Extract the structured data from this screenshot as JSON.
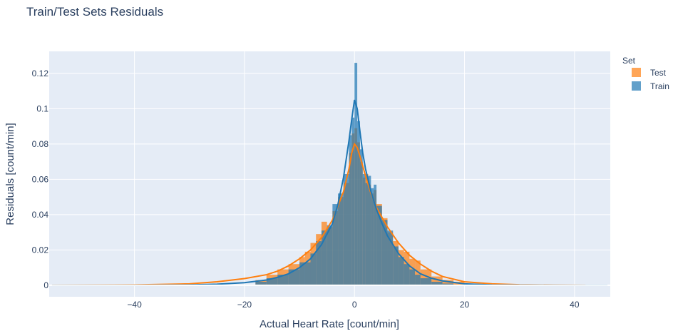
{
  "chart_data": {
    "type": "bar",
    "title": "Train/Test Sets Residuals",
    "xlabel": "Actual Heart Rate [count/min]",
    "ylabel": "Residuals [count/min]",
    "xlim": [
      -55.5,
      46.5
    ],
    "ylim": [
      -0.0065,
      0.1325
    ],
    "x_ticks": [
      -40,
      -20,
      0,
      20,
      40
    ],
    "x_tick_labels": [
      "−40",
      "−20",
      "0",
      "20",
      "40"
    ],
    "y_ticks": [
      0,
      0.02,
      0.04,
      0.06,
      0.08,
      0.1,
      0.12
    ],
    "y_tick_labels": [
      "0",
      "0.02",
      "0.04",
      "0.06",
      "0.08",
      "0.1",
      "0.12"
    ],
    "grid": true,
    "legend": {
      "title": "Set",
      "position": "right"
    },
    "series": [
      {
        "name": "Train",
        "color": "#1f77b4",
        "bins": [
          [
            -18,
            -16,
            0.002
          ],
          [
            -16,
            -14,
            0.004
          ],
          [
            -14,
            -12,
            0.006
          ],
          [
            -12,
            -10,
            0.009
          ],
          [
            -10,
            -8,
            0.013
          ],
          [
            -8,
            -7,
            0.018
          ],
          [
            -7,
            -6,
            0.025
          ],
          [
            -6,
            -5,
            0.031
          ],
          [
            -5,
            -4,
            0.034
          ],
          [
            -4,
            -3,
            0.046
          ],
          [
            -3,
            -2,
            0.052
          ],
          [
            -2,
            -1,
            0.063
          ],
          [
            -1,
            -0.5,
            0.085
          ],
          [
            -0.5,
            0,
            0.095
          ],
          [
            0,
            0.5,
            0.126
          ],
          [
            0.5,
            1,
            0.093
          ],
          [
            1,
            1.5,
            0.077
          ],
          [
            1.5,
            2,
            0.063
          ],
          [
            2,
            2.5,
            0.058
          ],
          [
            2.5,
            3,
            0.062
          ],
          [
            3,
            3.5,
            0.055
          ],
          [
            3.5,
            4,
            0.057
          ],
          [
            4,
            5,
            0.045
          ],
          [
            5,
            6,
            0.037
          ],
          [
            6,
            7,
            0.031
          ],
          [
            7,
            8,
            0.022
          ],
          [
            8,
            9,
            0.016
          ],
          [
            9,
            10,
            0.012
          ],
          [
            10,
            11,
            0.009
          ],
          [
            11,
            12,
            0.006
          ],
          [
            12,
            14,
            0.004
          ],
          [
            14,
            16,
            0.002
          ],
          [
            16,
            18,
            0.001
          ]
        ],
        "kde": {
          "x": [
            -55,
            -40,
            -30,
            -25,
            -20,
            -16,
            -14,
            -12,
            -10,
            -8,
            -6,
            -4,
            -3,
            -2,
            -1,
            -0.5,
            0,
            0.5,
            1,
            1.5,
            2,
            3,
            4,
            5,
            6,
            8,
            10,
            12,
            14,
            16,
            20,
            25,
            30,
            40,
            46
          ],
          "y": [
            0,
            0,
            0.0002,
            0.0006,
            0.0015,
            0.003,
            0.0045,
            0.0065,
            0.01,
            0.015,
            0.023,
            0.035,
            0.046,
            0.061,
            0.082,
            0.094,
            0.105,
            0.1,
            0.087,
            0.075,
            0.066,
            0.053,
            0.043,
            0.035,
            0.028,
            0.018,
            0.011,
            0.0065,
            0.004,
            0.0025,
            0.0008,
            0.0002,
            0.0001,
            0,
            0
          ]
        }
      },
      {
        "name": "Test",
        "color": "#ff7f0e",
        "bins": [
          [
            -18,
            -16,
            0.003
          ],
          [
            -16,
            -14,
            0.006
          ],
          [
            -14,
            -12,
            0.009
          ],
          [
            -12,
            -10,
            0.012
          ],
          [
            -10,
            -9,
            0.016
          ],
          [
            -9,
            -8,
            0.019
          ],
          [
            -8,
            -7,
            0.024
          ],
          [
            -7,
            -6,
            0.029
          ],
          [
            -6,
            -5,
            0.036
          ],
          [
            -5,
            -4,
            0.033
          ],
          [
            -4,
            -3,
            0.042
          ],
          [
            -3,
            -2,
            0.05
          ],
          [
            -2,
            -1,
            0.058
          ],
          [
            -1,
            -0.5,
            0.075
          ],
          [
            -0.5,
            0,
            0.086
          ],
          [
            0,
            0.5,
            0.089
          ],
          [
            0.5,
            1,
            0.081
          ],
          [
            1,
            1.5,
            0.07
          ],
          [
            1.5,
            2,
            0.061
          ],
          [
            2,
            2.5,
            0.063
          ],
          [
            2.5,
            3,
            0.057
          ],
          [
            3,
            3.5,
            0.052
          ],
          [
            3.5,
            4,
            0.054
          ],
          [
            4,
            5,
            0.046
          ],
          [
            5,
            6,
            0.038
          ],
          [
            6,
            7,
            0.03
          ],
          [
            7,
            8,
            0.025
          ],
          [
            8,
            9,
            0.02
          ],
          [
            9,
            10,
            0.019
          ],
          [
            10,
            11,
            0.015
          ],
          [
            11,
            12,
            0.014
          ],
          [
            12,
            14,
            0.009
          ],
          [
            14,
            16,
            0.005
          ],
          [
            16,
            18,
            0.003
          ],
          [
            18,
            20,
            0.002
          ]
        ],
        "kde": {
          "x": [
            -55,
            -40,
            -30,
            -25,
            -20,
            -16,
            -14,
            -12,
            -10,
            -8,
            -6,
            -4,
            -2,
            -1,
            -0.5,
            0,
            0.5,
            1,
            2,
            3,
            4,
            6,
            8,
            10,
            12,
            14,
            16,
            20,
            25,
            30,
            42
          ],
          "y": [
            0,
            0.0002,
            0.0008,
            0.002,
            0.0038,
            0.006,
            0.008,
            0.011,
            0.015,
            0.02,
            0.027,
            0.037,
            0.053,
            0.066,
            0.075,
            0.08,
            0.078,
            0.073,
            0.062,
            0.052,
            0.044,
            0.033,
            0.024,
            0.017,
            0.012,
            0.008,
            0.005,
            0.002,
            0.0008,
            0.0003,
            0
          ]
        }
      }
    ]
  }
}
